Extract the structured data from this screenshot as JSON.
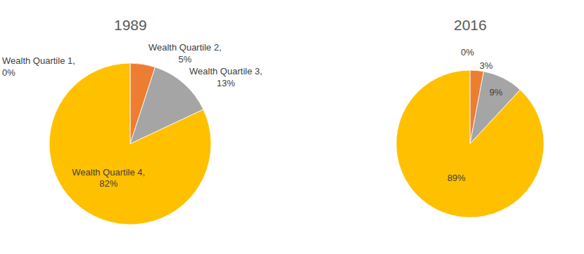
{
  "chart_data": [
    {
      "type": "pie",
      "title": "1989",
      "categories": [
        "Wealth Quartile 1",
        "Wealth Quartile 2",
        "Wealth Quartile 3",
        "Wealth Quartile 4"
      ],
      "values": [
        0,
        5,
        13,
        82
      ],
      "value_labels": [
        "Wealth Quartile 1, 0%",
        "Wealth Quartile 2, 5%",
        "Wealth Quartile 3, 13%",
        "Wealth Quartile 4, 82%"
      ],
      "colors": [
        "#44546a",
        "#ed7d31",
        "#a5a5a5",
        "#ffc000"
      ],
      "data_labels": true
    },
    {
      "type": "pie",
      "title": "2016",
      "values": [
        0,
        3,
        9,
        89
      ],
      "value_labels": [
        "0%",
        "3%",
        "9%",
        "89%"
      ],
      "colors": [
        "#44546a",
        "#ed7d31",
        "#a5a5a5",
        "#ffc000"
      ],
      "data_labels": true
    }
  ]
}
